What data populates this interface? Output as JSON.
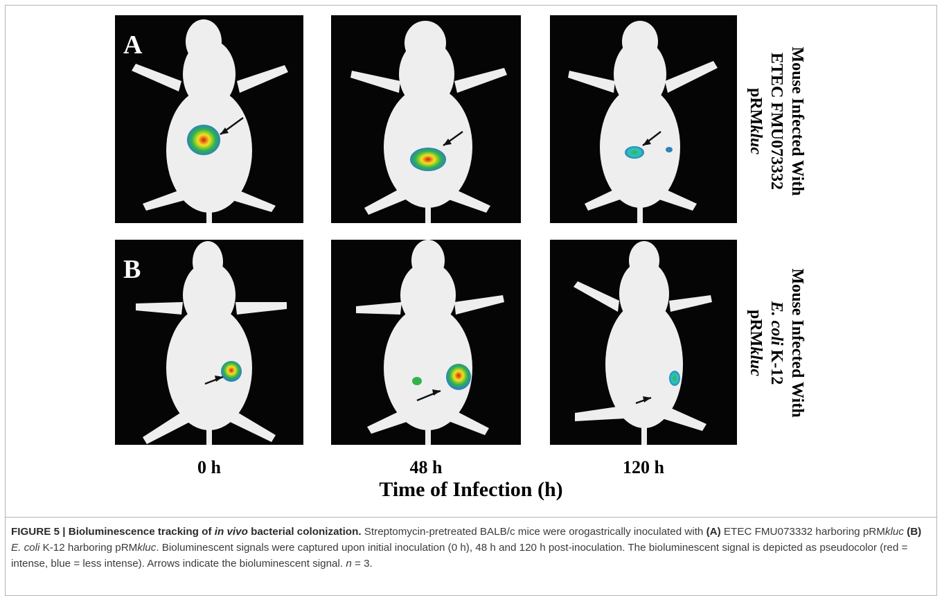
{
  "figure": {
    "panels": {
      "A": {
        "letter": "A",
        "group": "ETEC FMU073332 pRMkluc"
      },
      "B": {
        "letter": "B",
        "group": "E. coli K-12 pRMkluc"
      }
    },
    "row_labels": {
      "A": {
        "line1": "Mouse Infected With",
        "line2": "ETEC FMU073332",
        "line3_prefix": "pRM",
        "line3_italic": "kluc"
      },
      "B": {
        "line1": "Mouse Infected With",
        "line2_italic": "E. coli",
        "line2_rest": " K-12",
        "line3_prefix": "pRM",
        "line3_italic": "kluc"
      }
    },
    "time_points": [
      "0 h",
      "48 h",
      "120 h"
    ],
    "axis_title": "Time of Infection (h)"
  },
  "caption": {
    "label": "FIGURE 5 | Bioluminescence tracking of ",
    "label_italic": "in vivo",
    "label_rest": " bacterial colonization.",
    "t1": " Streptomycin-pretreated BALB/c mice were orogastrically inoculated with ",
    "a": "(A)",
    "t2": " ETEC FMU073332 harboring pRM",
    "kluc1": "kluc",
    "t3": " ",
    "b": "(B)",
    "t4": " ",
    "ecoli": "E. coli",
    "t5": " K-12 harboring pRM",
    "kluc2": "kluc",
    "t6": ". Bioluminescent signals were captured upon initial inoculation (0 h), 48 h and 120 h post-inoculation. The bioluminescent signal is depicted as pseudocolor (red = intense, blue = less intense). Arrows indicate the bioluminescent signal. ",
    "n": "n",
    "t7": " = 3."
  },
  "colors": {
    "panel_bg": "#050505",
    "mouse": "#f2f2f2",
    "signal_high": "#d7191c",
    "signal_mid": "#f5e21b",
    "signal_low": "#2b83ba"
  },
  "signals": [
    {
      "panel": "A-0h",
      "intensity": "high"
    },
    {
      "panel": "A-48h",
      "intensity": "high"
    },
    {
      "panel": "A-120h",
      "intensity": "low"
    },
    {
      "panel": "B-0h",
      "intensity": "high"
    },
    {
      "panel": "B-48h",
      "intensity": "medium"
    },
    {
      "panel": "B-120h",
      "intensity": "low"
    }
  ]
}
